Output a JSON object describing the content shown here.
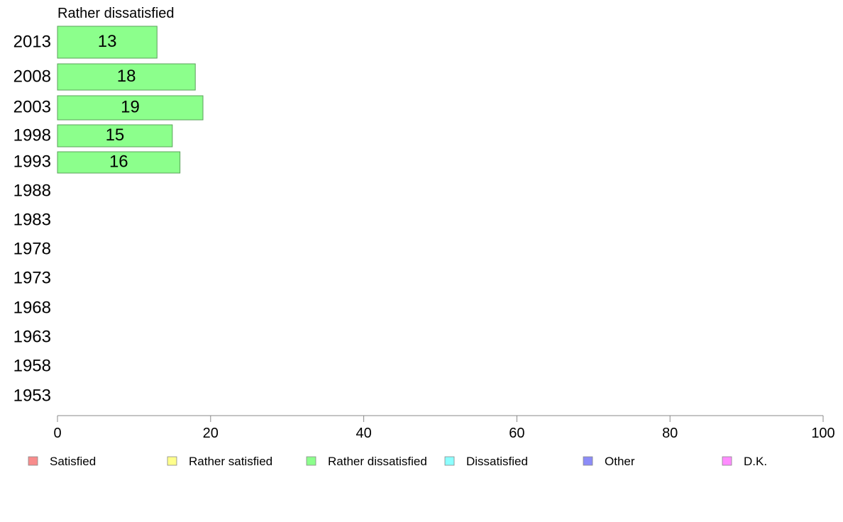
{
  "chart_data": {
    "type": "bar",
    "orientation": "horizontal",
    "title": "Rather dissatisfied",
    "categories": [
      "2013",
      "2008",
      "2003",
      "1998",
      "1993",
      "1988",
      "1983",
      "1978",
      "1973",
      "1968",
      "1963",
      "1958",
      "1953"
    ],
    "series": [
      {
        "name": "Rather dissatisfied",
        "values": [
          13,
          18,
          19,
          15,
          16,
          null,
          null,
          null,
          null,
          null,
          null,
          null,
          null
        ]
      }
    ],
    "xlim": [
      0,
      100
    ],
    "xticks": [
      "0",
      "20",
      "40",
      "60",
      "80",
      "100"
    ],
    "grid": false,
    "legend_position": "bottom",
    "legend": [
      {
        "label": "Satisfied",
        "color": "#f88c8c"
      },
      {
        "label": "Rather satisfied",
        "color": "#ffff8c"
      },
      {
        "label": "Rather dissatisfied",
        "color": "#8cff8c"
      },
      {
        "label": "Dissatisfied",
        "color": "#8cffff"
      },
      {
        "label": "Other",
        "color": "#8c8cf8"
      },
      {
        "label": "D.K.",
        "color": "#ff8cff"
      }
    ],
    "bar_color": "#8cff8c",
    "bar_stroke": "#5aa05a"
  }
}
